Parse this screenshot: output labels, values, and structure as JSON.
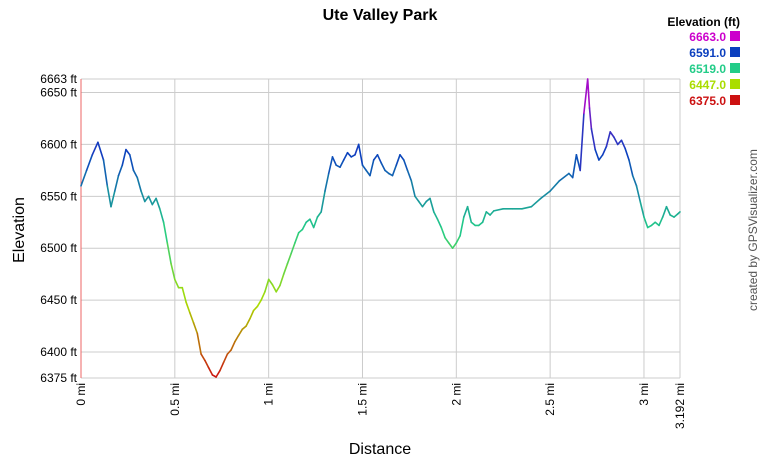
{
  "chart_data": {
    "type": "line",
    "title": "Ute Valley Park",
    "xlabel": "Distance",
    "ylabel": "Elevation",
    "xlim": [
      0,
      3.192
    ],
    "ylim": [
      6375,
      6663
    ],
    "x_ticks": [
      {
        "value": 0,
        "label": "0 mi"
      },
      {
        "value": 0.5,
        "label": "0.5 mi"
      },
      {
        "value": 1,
        "label": "1 mi"
      },
      {
        "value": 1.5,
        "label": "1.5 mi"
      },
      {
        "value": 2,
        "label": "2 mi"
      },
      {
        "value": 2.5,
        "label": "2.5 mi"
      },
      {
        "value": 3,
        "label": "3 mi"
      },
      {
        "value": 3.192,
        "label": "3.192 mi"
      }
    ],
    "y_ticks": [
      {
        "value": 6375,
        "label": "6375 ft"
      },
      {
        "value": 6400,
        "label": "6400 ft"
      },
      {
        "value": 6450,
        "label": "6450 ft"
      },
      {
        "value": 6500,
        "label": "6500 ft"
      },
      {
        "value": 6550,
        "label": "6550 ft"
      },
      {
        "value": 6600,
        "label": "6600 ft"
      },
      {
        "value": 6650,
        "label": "6650 ft"
      },
      {
        "value": 6663,
        "label": "6663 ft"
      }
    ],
    "grid": true,
    "legend": {
      "title": "Elevation (ft)",
      "placement": "top-right",
      "entries": [
        {
          "label": "6663.0",
          "color": "#cc00cc"
        },
        {
          "label": "6591.0",
          "color": "#0b3fbf"
        },
        {
          "label": "6519.0",
          "color": "#22cc88"
        },
        {
          "label": "6447.0",
          "color": "#aadd00"
        },
        {
          "label": "6375.0",
          "color": "#cc1111"
        }
      ]
    },
    "credit": "created by GPSVisualizer.com",
    "series": [
      {
        "values": [
          [
            0.0,
            6560
          ],
          [
            0.03,
            6575
          ],
          [
            0.06,
            6590
          ],
          [
            0.09,
            6602
          ],
          [
            0.12,
            6585
          ],
          [
            0.14,
            6560
          ],
          [
            0.16,
            6540
          ],
          [
            0.18,
            6555
          ],
          [
            0.2,
            6570
          ],
          [
            0.22,
            6580
          ],
          [
            0.24,
            6595
          ],
          [
            0.26,
            6590
          ],
          [
            0.28,
            6575
          ],
          [
            0.3,
            6568
          ],
          [
            0.32,
            6555
          ],
          [
            0.34,
            6545
          ],
          [
            0.36,
            6550
          ],
          [
            0.38,
            6542
          ],
          [
            0.4,
            6548
          ],
          [
            0.42,
            6538
          ],
          [
            0.44,
            6525
          ],
          [
            0.46,
            6505
          ],
          [
            0.48,
            6485
          ],
          [
            0.5,
            6470
          ],
          [
            0.52,
            6462
          ],
          [
            0.54,
            6462
          ],
          [
            0.56,
            6448
          ],
          [
            0.58,
            6438
          ],
          [
            0.6,
            6428
          ],
          [
            0.62,
            6418
          ],
          [
            0.64,
            6398
          ],
          [
            0.66,
            6392
          ],
          [
            0.68,
            6385
          ],
          [
            0.7,
            6378
          ],
          [
            0.72,
            6376
          ],
          [
            0.74,
            6382
          ],
          [
            0.76,
            6390
          ],
          [
            0.78,
            6398
          ],
          [
            0.8,
            6402
          ],
          [
            0.82,
            6410
          ],
          [
            0.84,
            6416
          ],
          [
            0.86,
            6422
          ],
          [
            0.88,
            6425
          ],
          [
            0.9,
            6432
          ],
          [
            0.92,
            6440
          ],
          [
            0.94,
            6444
          ],
          [
            0.96,
            6450
          ],
          [
            0.98,
            6458
          ],
          [
            1.0,
            6470
          ],
          [
            1.02,
            6465
          ],
          [
            1.04,
            6458
          ],
          [
            1.06,
            6464
          ],
          [
            1.08,
            6475
          ],
          [
            1.1,
            6485
          ],
          [
            1.12,
            6495
          ],
          [
            1.14,
            6505
          ],
          [
            1.16,
            6515
          ],
          [
            1.18,
            6518
          ],
          [
            1.2,
            6525
          ],
          [
            1.22,
            6528
          ],
          [
            1.24,
            6520
          ],
          [
            1.26,
            6530
          ],
          [
            1.28,
            6535
          ],
          [
            1.3,
            6555
          ],
          [
            1.32,
            6572
          ],
          [
            1.34,
            6588
          ],
          [
            1.36,
            6580
          ],
          [
            1.38,
            6578
          ],
          [
            1.4,
            6585
          ],
          [
            1.42,
            6592
          ],
          [
            1.44,
            6588
          ],
          [
            1.46,
            6590
          ],
          [
            1.48,
            6600
          ],
          [
            1.5,
            6580
          ],
          [
            1.52,
            6575
          ],
          [
            1.54,
            6570
          ],
          [
            1.56,
            6585
          ],
          [
            1.58,
            6590
          ],
          [
            1.6,
            6582
          ],
          [
            1.62,
            6575
          ],
          [
            1.64,
            6572
          ],
          [
            1.66,
            6570
          ],
          [
            1.68,
            6580
          ],
          [
            1.7,
            6590
          ],
          [
            1.72,
            6585
          ],
          [
            1.74,
            6575
          ],
          [
            1.76,
            6565
          ],
          [
            1.78,
            6550
          ],
          [
            1.8,
            6545
          ],
          [
            1.82,
            6540
          ],
          [
            1.84,
            6545
          ],
          [
            1.86,
            6548
          ],
          [
            1.88,
            6535
          ],
          [
            1.9,
            6528
          ],
          [
            1.92,
            6520
          ],
          [
            1.94,
            6510
          ],
          [
            1.96,
            6505
          ],
          [
            1.98,
            6500
          ],
          [
            2.0,
            6505
          ],
          [
            2.02,
            6512
          ],
          [
            2.04,
            6530
          ],
          [
            2.06,
            6540
          ],
          [
            2.08,
            6525
          ],
          [
            2.1,
            6522
          ],
          [
            2.12,
            6522
          ],
          [
            2.14,
            6525
          ],
          [
            2.16,
            6535
          ],
          [
            2.18,
            6532
          ],
          [
            2.2,
            6536
          ],
          [
            2.25,
            6538
          ],
          [
            2.3,
            6538
          ],
          [
            2.35,
            6538
          ],
          [
            2.4,
            6540
          ],
          [
            2.45,
            6548
          ],
          [
            2.5,
            6555
          ],
          [
            2.55,
            6565
          ],
          [
            2.6,
            6572
          ],
          [
            2.62,
            6568
          ],
          [
            2.64,
            6590
          ],
          [
            2.66,
            6575
          ],
          [
            2.68,
            6630
          ],
          [
            2.7,
            6663
          ],
          [
            2.71,
            6635
          ],
          [
            2.72,
            6615
          ],
          [
            2.74,
            6595
          ],
          [
            2.76,
            6585
          ],
          [
            2.78,
            6590
          ],
          [
            2.8,
            6598
          ],
          [
            2.82,
            6612
          ],
          [
            2.84,
            6607
          ],
          [
            2.86,
            6600
          ],
          [
            2.88,
            6604
          ],
          [
            2.9,
            6596
          ],
          [
            2.92,
            6585
          ],
          [
            2.94,
            6570
          ],
          [
            2.96,
            6560
          ],
          [
            2.98,
            6545
          ],
          [
            3.0,
            6530
          ],
          [
            3.02,
            6520
          ],
          [
            3.04,
            6522
          ],
          [
            3.06,
            6525
          ],
          [
            3.08,
            6522
          ],
          [
            3.1,
            6530
          ],
          [
            3.12,
            6540
          ],
          [
            3.14,
            6532
          ],
          [
            3.16,
            6530
          ],
          [
            3.18,
            6533
          ],
          [
            3.192,
            6535
          ]
        ]
      }
    ]
  }
}
